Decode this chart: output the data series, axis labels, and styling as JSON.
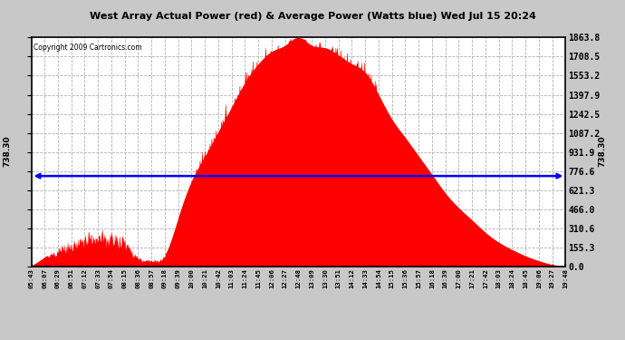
{
  "title": "West Array Actual Power (red) & Average Power (Watts blue) Wed Jul 15 20:24",
  "copyright": "Copyright 2009 Cartronics.com",
  "avg_power": 738.3,
  "ymax": 1863.8,
  "ymin": 0.0,
  "yticks_right": [
    0.0,
    155.3,
    310.6,
    466.0,
    621.3,
    776.6,
    931.9,
    1087.2,
    1242.5,
    1397.9,
    1553.2,
    1708.5,
    1863.8
  ],
  "bar_color": "#ff0000",
  "line_color": "#0000ff",
  "grid_color": "#b0b0b0",
  "outer_bg": "#c8c8c8",
  "plot_bg": "#ffffff",
  "xtick_labels": [
    "05:43",
    "06:07",
    "06:29",
    "06:51",
    "07:12",
    "07:33",
    "07:54",
    "08:15",
    "08:36",
    "08:57",
    "09:18",
    "09:39",
    "10:00",
    "10:21",
    "10:42",
    "11:03",
    "11:24",
    "11:45",
    "12:06",
    "12:27",
    "12:48",
    "13:09",
    "13:30",
    "13:51",
    "14:12",
    "14:33",
    "14:54",
    "15:15",
    "15:36",
    "15:57",
    "16:18",
    "16:39",
    "17:00",
    "17:21",
    "17:42",
    "18:03",
    "18:24",
    "18:45",
    "19:06",
    "19:27",
    "19:48"
  ]
}
